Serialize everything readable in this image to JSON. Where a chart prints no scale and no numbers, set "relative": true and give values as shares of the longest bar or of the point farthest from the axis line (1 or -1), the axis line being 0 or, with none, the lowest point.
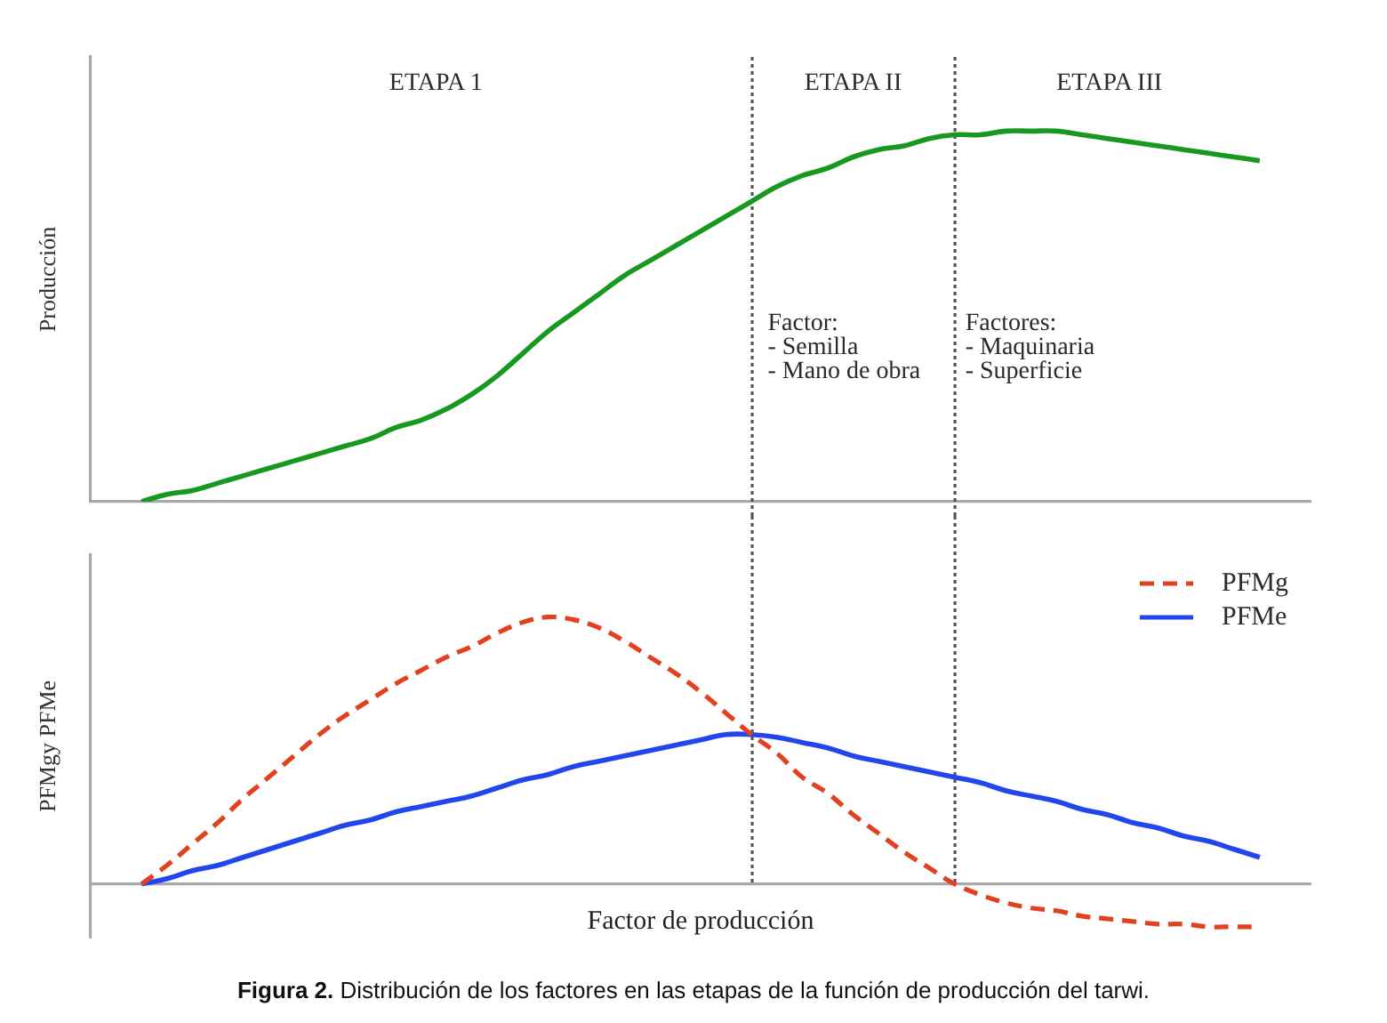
{
  "chart_data": [
    {
      "type": "line",
      "ylabel": "Producción",
      "relative": true,
      "marker": "none",
      "categories": [
        null,
        null,
        null,
        null,
        null,
        null,
        null,
        null,
        null,
        null,
        null,
        null,
        null,
        null,
        null,
        null,
        null,
        null,
        null,
        null,
        null,
        null,
        null,
        null,
        null,
        null,
        null,
        null,
        null,
        null,
        null,
        null,
        null,
        null,
        null,
        null,
        null,
        null,
        null,
        null,
        null,
        null,
        null,
        null,
        null
      ],
      "color": "#17991f",
      "values": [
        0,
        0.02,
        0.03,
        0.05,
        0.07,
        0.09,
        0.11,
        0.13,
        0.15,
        0.17,
        0.2,
        0.22,
        0.25,
        0.29,
        0.34,
        0.4,
        0.46,
        0.51,
        0.56,
        0.61,
        0.65,
        0.69,
        0.73,
        0.77,
        0.81,
        0.85,
        0.88,
        0.9,
        0.93,
        0.95,
        0.96,
        0.98,
        0.99,
        0.99,
        1,
        1,
        1,
        0.99,
        0.98,
        0.97,
        0.96,
        0.95,
        0.94,
        0.93,
        0.92
      ],
      "annotations": [
        "ETAPA 1",
        "ETAPA II",
        "ETAPA III",
        "Factor:\n- Semilla\n- Mano de obra",
        "Factores:\n- Maquinaria\n- Superficie"
      ]
    },
    {
      "type": "line",
      "ylabel": "PFMgy PFMe",
      "xlabel": "Factor de producción",
      "relative": true,
      "marker": "none",
      "legend": "top right",
      "categories": [
        null,
        null,
        null,
        null,
        null,
        null,
        null,
        null,
        null,
        null,
        null,
        null,
        null,
        null,
        null,
        null,
        null,
        null,
        null,
        null,
        null,
        null,
        null,
        null,
        null,
        null,
        null,
        null,
        null,
        null,
        null,
        null,
        null,
        null,
        null,
        null,
        null,
        null,
        null,
        null,
        null,
        null,
        null,
        null,
        null
      ],
      "series": [
        {
          "name": "PFMg",
          "color": "#e2401f",
          "line_style": "dashed",
          "values": [
            0,
            0.07,
            0.15,
            0.23,
            0.32,
            0.4,
            0.48,
            0.56,
            0.63,
            0.69,
            0.75,
            0.8,
            0.85,
            0.89,
            0.94,
            0.98,
            1,
            0.99,
            0.96,
            0.91,
            0.85,
            0.79,
            0.72,
            0.64,
            0.56,
            0.49,
            0.4,
            0.34,
            0.26,
            0.19,
            0.12,
            0.06,
            0,
            -0.04,
            -0.07,
            -0.09,
            -0.1,
            -0.12,
            -0.13,
            -0.14,
            -0.15,
            -0.15,
            -0.16,
            -0.16,
            -0.16
          ]
        },
        {
          "name": "PFMe",
          "color": "#2146ee",
          "line_style": "solid",
          "values": [
            0,
            0.02,
            0.05,
            0.07,
            0.1,
            0.13,
            0.16,
            0.19,
            0.22,
            0.24,
            0.27,
            0.29,
            0.31,
            0.33,
            0.36,
            0.39,
            0.41,
            0.44,
            0.46,
            0.48,
            0.5,
            0.52,
            0.54,
            0.56,
            0.56,
            0.55,
            0.53,
            0.51,
            0.48,
            0.46,
            0.44,
            0.42,
            0.4,
            0.38,
            0.35,
            0.33,
            0.31,
            0.28,
            0.26,
            0.23,
            0.21,
            0.18,
            0.16,
            0.13,
            0.1
          ]
        }
      ],
      "annotations": [
        "Figura 2. Distribución de los factores en las etapas de la función de producción del tarwi."
      ]
    }
  ]
}
